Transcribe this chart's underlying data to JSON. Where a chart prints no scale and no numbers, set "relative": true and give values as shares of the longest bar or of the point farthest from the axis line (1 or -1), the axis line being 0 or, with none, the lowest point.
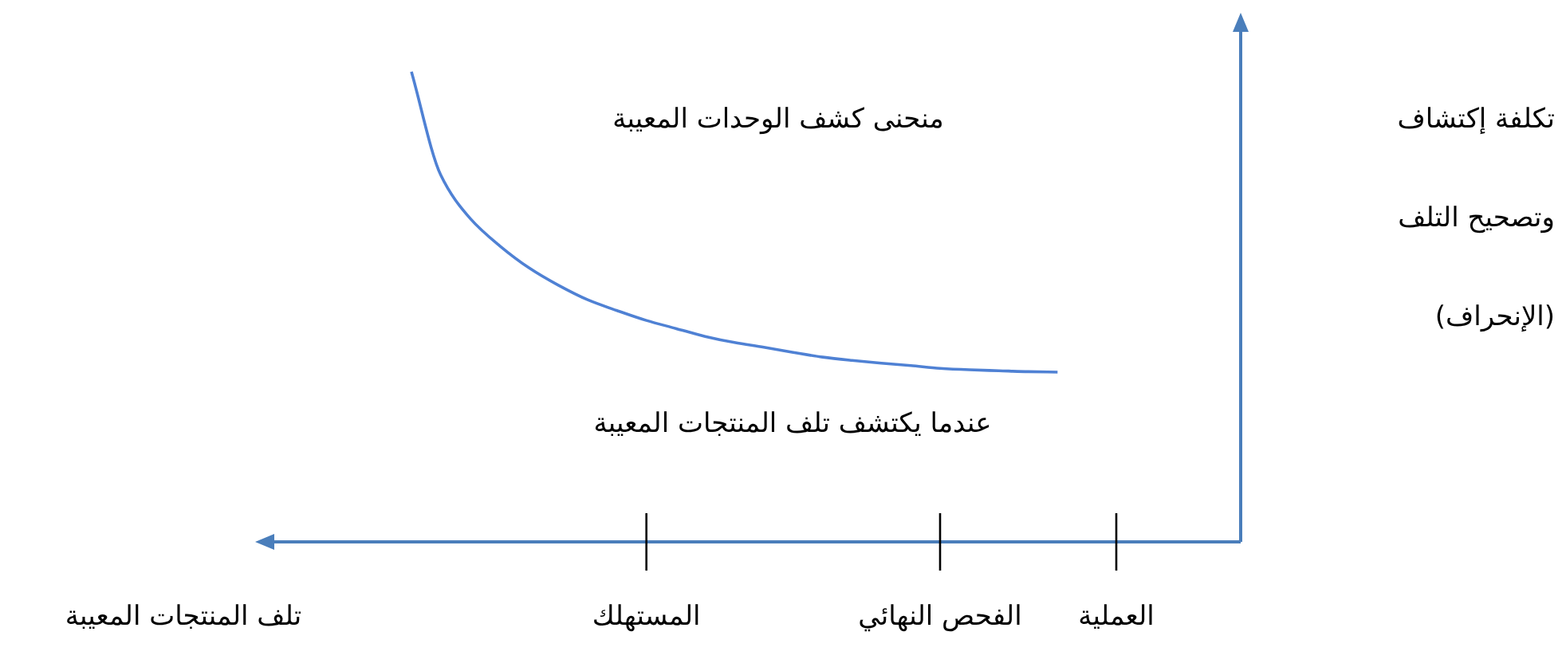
{
  "chart_data": {
    "type": "line",
    "relative": true,
    "xlabel": "تلف المنتجات المعيبة",
    "ylabel": "تكلفة إكتشاف وتصحيح التلف (الإنحراف)",
    "annotations": [
      "منحنى كشف الوحدات المعيبة",
      "عندما يكتشف تلف المنتجات المعيبة"
    ],
    "categories": [
      null,
      null,
      null,
      null,
      null,
      null,
      null,
      null,
      "المستهلك",
      null,
      null,
      null,
      null,
      null,
      null,
      null,
      null,
      null,
      "الفحص النهائي",
      null,
      null,
      null,
      null,
      null,
      "العملية"
    ],
    "series": [
      {
        "color": "#4f81d4",
        "values": [
          1.0,
          0.78,
          0.688,
          0.63,
          0.583,
          0.546,
          0.515,
          0.492,
          0.471,
          0.454,
          0.437,
          0.424,
          0.414,
          0.403,
          0.393,
          0.386,
          0.38,
          0.375,
          0.369,
          0.366,
          0.364,
          0.362,
          0.361,
          null,
          null
        ]
      }
    ]
  }
}
